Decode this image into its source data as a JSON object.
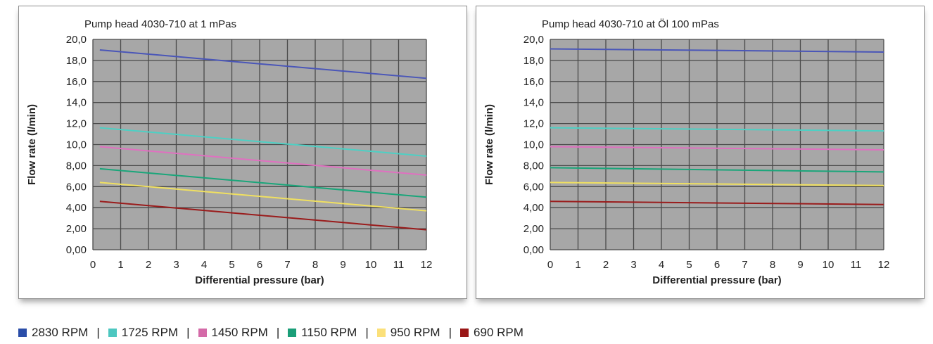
{
  "chart_data": [
    {
      "type": "line",
      "title": "Pump head 4030-710 at 1 mPas",
      "xlabel": "Differential pressure (bar)",
      "ylabel": "Flow rate (l/min)",
      "xlim": [
        0,
        12
      ],
      "ylim": [
        0,
        20
      ],
      "x_ticks": [
        "0",
        "1",
        "2",
        "3",
        "4",
        "5",
        "6",
        "7",
        "8",
        "9",
        "10",
        "11",
        "12"
      ],
      "y_ticks": [
        "0,00",
        "2,00",
        "4,00",
        "6,00",
        "8,00",
        "10,0",
        "12,0",
        "14,0",
        "16,0",
        "18,0",
        "20,0"
      ],
      "grid": true,
      "series": [
        {
          "name": "2830 RPM",
          "color": "#4a56b8",
          "x": [
            0.25,
            12
          ],
          "y": [
            19.0,
            16.3
          ]
        },
        {
          "name": "1725 RPM",
          "color": "#4dd0c4",
          "x": [
            0.25,
            12
          ],
          "y": [
            11.6,
            8.9
          ]
        },
        {
          "name": "1450 RPM",
          "color": "#e070c0",
          "x": [
            0.25,
            12
          ],
          "y": [
            9.8,
            7.1
          ]
        },
        {
          "name": "1150 RPM",
          "color": "#1aa67a",
          "x": [
            0.25,
            12
          ],
          "y": [
            7.7,
            5.0
          ]
        },
        {
          "name": "950 RPM",
          "color": "#f0e060",
          "x": [
            0.25,
            12
          ],
          "y": [
            6.4,
            3.7
          ]
        },
        {
          "name": "690 RPM",
          "color": "#9a1c1c",
          "x": [
            0.25,
            12
          ],
          "y": [
            4.6,
            1.9
          ]
        }
      ]
    },
    {
      "type": "line",
      "title": "Pump head 4030-710 at Öl 100 mPas",
      "xlabel": "Differential pressure (bar)",
      "ylabel": "Flow rate (l/min)",
      "xlim": [
        0,
        12
      ],
      "ylim": [
        0,
        20
      ],
      "x_ticks": [
        "0",
        "1",
        "2",
        "3",
        "4",
        "5",
        "6",
        "7",
        "8",
        "9",
        "10",
        "11",
        "12"
      ],
      "y_ticks": [
        "0,00",
        "2,00",
        "4,00",
        "6,00",
        "8,00",
        "10,0",
        "12,0",
        "14,0",
        "16,0",
        "18,0",
        "20,0"
      ],
      "grid": true,
      "series": [
        {
          "name": "2830 RPM",
          "color": "#4a56b8",
          "x": [
            0,
            12
          ],
          "y": [
            19.1,
            18.8
          ]
        },
        {
          "name": "1725 RPM",
          "color": "#4dd0c4",
          "x": [
            0,
            12
          ],
          "y": [
            11.6,
            11.3
          ]
        },
        {
          "name": "1450 RPM",
          "color": "#e070c0",
          "x": [
            0,
            12
          ],
          "y": [
            9.8,
            9.5
          ]
        },
        {
          "name": "1150 RPM",
          "color": "#1aa67a",
          "x": [
            0,
            12
          ],
          "y": [
            7.8,
            7.4
          ]
        },
        {
          "name": "950 RPM",
          "color": "#f0e060",
          "x": [
            0,
            12
          ],
          "y": [
            6.4,
            6.1
          ]
        },
        {
          "name": "690 RPM",
          "color": "#9a1c1c",
          "x": [
            0,
            12
          ],
          "y": [
            4.6,
            4.3
          ]
        }
      ]
    }
  ],
  "legend": {
    "items": [
      {
        "label": "2830 RPM",
        "color": "#2a4da8"
      },
      {
        "label": "1725 RPM",
        "color": "#4dc7c0"
      },
      {
        "label": "1450 RPM",
        "color": "#d46aa8"
      },
      {
        "label": "1150 RPM",
        "color": "#1a9e78"
      },
      {
        "label": "950 RPM",
        "color": "#fbe07a"
      },
      {
        "label": "690 RPM",
        "color": "#9a1616"
      }
    ],
    "separator": "|"
  },
  "style": {
    "plot_background": "#a7a7a7",
    "grid_color": "#4a4a4a"
  }
}
